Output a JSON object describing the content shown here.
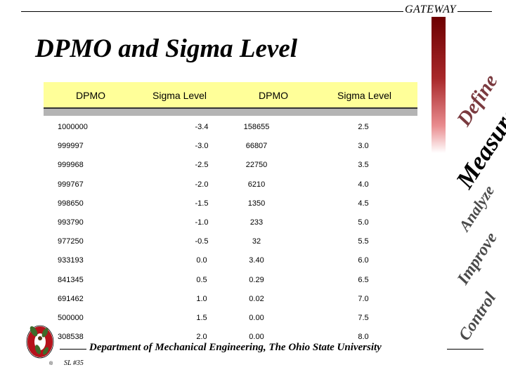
{
  "header": {
    "brand": "GATEWAY"
  },
  "title": "DPMO and Sigma Level",
  "table": {
    "columns": [
      "DPMO",
      "Sigma Level",
      "DPMO",
      "Sigma Level"
    ],
    "rows": [
      [
        "1000000",
        "-3.4",
        "158655",
        "2.5"
      ],
      [
        "999997",
        "-3.0",
        "66807",
        "3.0"
      ],
      [
        "999968",
        "-2.5",
        "22750",
        "3.5"
      ],
      [
        "999767",
        "-2.0",
        "6210",
        "4.0"
      ],
      [
        "998650",
        "-1.5",
        "1350",
        "4.5"
      ],
      [
        "993790",
        "-1.0",
        "233",
        "5.0"
      ],
      [
        "977250",
        "-0.5",
        "32",
        "5.5"
      ],
      [
        "933193",
        "0.0",
        "3.40",
        "6.0"
      ],
      [
        "841345",
        "0.5",
        "0.29",
        "6.5"
      ],
      [
        "691462",
        "1.0",
        "0.02",
        "7.0"
      ],
      [
        "500000",
        "1.5",
        "0.00",
        "7.5"
      ],
      [
        "308538",
        "2.0",
        "0.00",
        "8.0"
      ]
    ]
  },
  "dmaic": {
    "define": "Define",
    "measure": "Measure",
    "analyze": "Analyze",
    "improve": "Improve",
    "control": "Control"
  },
  "footer": {
    "department": "Department of Mechanical Engineering, The Ohio State University",
    "slide_number": "SL #35",
    "registered_mark": "®"
  },
  "colors": {
    "header_fill": "#ffff99",
    "band_grey": "#b4b4b4",
    "sidebar_dark_red": "#6d0000",
    "logo_red": "#b5121b",
    "logo_green": "#3e6b2a"
  },
  "icons": {
    "logo": "ohio-state-block-o-buckeye-logo"
  }
}
